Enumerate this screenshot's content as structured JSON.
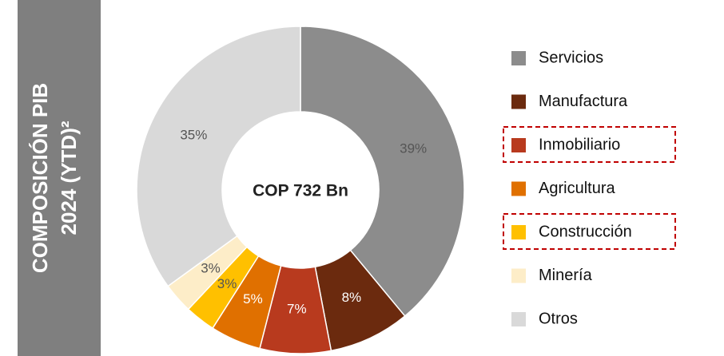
{
  "chart_data": {
    "type": "donut",
    "title": [
      "COMPOSICIÓN PIB",
      "2024 (YTD)²"
    ],
    "center_label": "COP 732 Bn",
    "categories": [
      "Servicios",
      "Manufactura",
      "Inmobiliario",
      "Agricultura",
      "Construcción",
      "Minería",
      "Otros"
    ],
    "values": [
      39,
      8,
      7,
      5,
      3,
      3,
      35
    ],
    "value_labels": [
      "39%",
      "8%",
      "7%",
      "5%",
      "3%",
      "3%",
      "35%"
    ],
    "colors": [
      "#8c8c8c",
      "#6b2a0e",
      "#b83a1e",
      "#e07000",
      "#ffc000",
      "#fdedc8",
      "#d9d9d9"
    ],
    "highlight": [
      false,
      false,
      true,
      false,
      true,
      false,
      false
    ]
  }
}
